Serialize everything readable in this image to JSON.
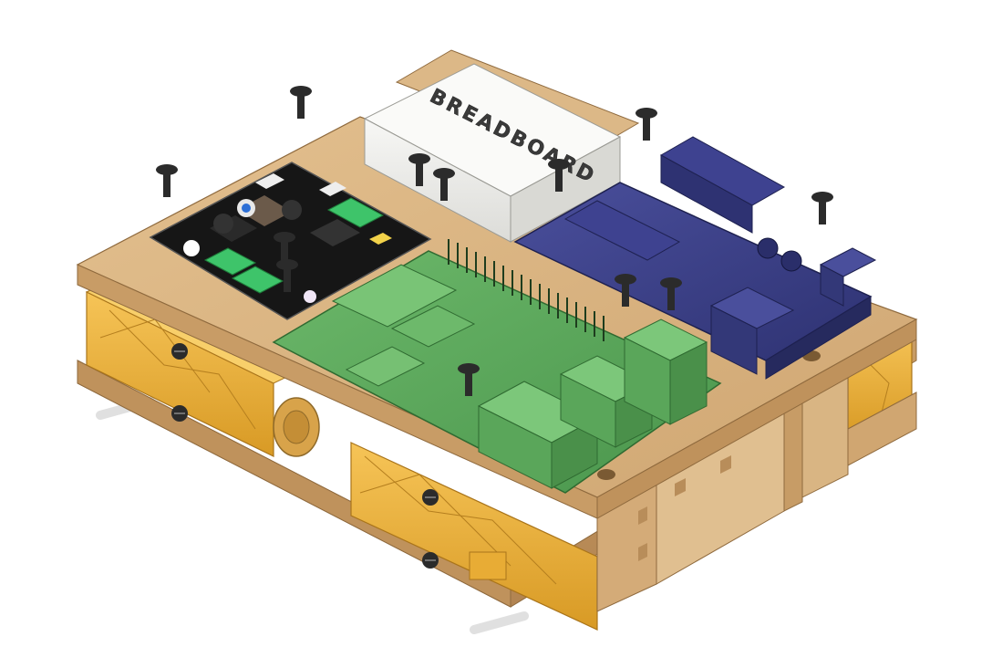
{
  "scene": {
    "breadboard_label": "BREADBOARD",
    "colors": {
      "background": "#ffffff",
      "wood": "#d9b382",
      "wood_dark": "#b88d5a",
      "motor": "#f0b33a",
      "motor_dark": "#c98a1c",
      "pi_green": "#5aa65a",
      "pi_green_dark": "#3e7f3e",
      "arduino": "#3a3f86",
      "arduino_dark": "#262a5e",
      "breadboard": "#efefec",
      "driver_board": "#161616",
      "terminal": "#3ec46a",
      "screw": "#2c2c2c"
    }
  }
}
